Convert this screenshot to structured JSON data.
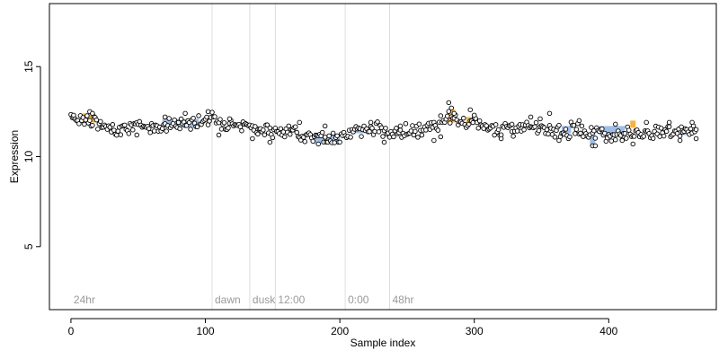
{
  "chart_data": {
    "type": "scatter",
    "xlabel": "Sample index",
    "ylabel": "Expression",
    "xlim": [
      -16,
      480
    ],
    "ylim": [
      1.5,
      18.5
    ],
    "x_ticks": [
      0,
      100,
      200,
      300,
      400
    ],
    "y_ticks": [
      5,
      10,
      15
    ],
    "grid": false,
    "colors": {
      "point_fill": "#ffffff",
      "point_edge": "#000000",
      "highlight_orange": "#f5a623",
      "highlight_blue": "#8fb2e3",
      "annotation_line": "#dcdcdc",
      "annotation_text": "#9a9a9a"
    },
    "annotations": [
      {
        "x": 0,
        "label": "24hr",
        "line": false
      },
      {
        "x": 105,
        "label": "dawn",
        "line": true
      },
      {
        "x": 133,
        "label": "dusk",
        "line": true
      },
      {
        "x": 152,
        "label": "12:00",
        "line": true
      },
      {
        "x": 204,
        "label": "0:00",
        "line": true
      },
      {
        "x": 237,
        "label": "48hr",
        "line": true
      }
    ],
    "highlight_bands": [
      {
        "x_start": 8,
        "x_end": 18,
        "color": "orange",
        "y_low": 11.9,
        "y_high": 12.4
      },
      {
        "x_start": 68,
        "x_end": 95,
        "color": "blue",
        "y_low": 11.6,
        "y_high": 12.1
      },
      {
        "x_start": 100,
        "x_end": 104,
        "color": "orange",
        "y_low": 11.9,
        "y_high": 12.3
      },
      {
        "x_start": 180,
        "x_end": 200,
        "color": "blue",
        "y_low": 10.7,
        "y_high": 11.2
      },
      {
        "x_start": 208,
        "x_end": 218,
        "color": "blue",
        "y_low": 11.3,
        "y_high": 11.6
      },
      {
        "x_start": 280,
        "x_end": 286,
        "color": "orange",
        "y_low": 11.9,
        "y_high": 12.6
      },
      {
        "x_start": 294,
        "x_end": 300,
        "color": "orange",
        "y_low": 11.8,
        "y_high": 12.2
      },
      {
        "x_start": 365,
        "x_end": 372,
        "color": "blue",
        "y_low": 11.3,
        "y_high": 11.7
      },
      {
        "x_start": 386,
        "x_end": 390,
        "color": "blue",
        "y_low": 10.6,
        "y_high": 11.3
      },
      {
        "x_start": 393,
        "x_end": 412,
        "color": "blue",
        "y_low": 11.2,
        "y_high": 11.7
      },
      {
        "x_start": 416,
        "x_end": 420,
        "color": "orange",
        "y_low": 11.6,
        "y_high": 12.0
      },
      {
        "x_start": 456,
        "x_end": 460,
        "color": "blue",
        "y_low": 11.2,
        "y_high": 11.6
      }
    ],
    "trend": [
      [
        0,
        12.2
      ],
      [
        10,
        12.1
      ],
      [
        20,
        11.8
      ],
      [
        30,
        11.5
      ],
      [
        45,
        11.7
      ],
      [
        60,
        11.6
      ],
      [
        75,
        11.8
      ],
      [
        90,
        11.9
      ],
      [
        100,
        12.1
      ],
      [
        115,
        11.9
      ],
      [
        125,
        11.8
      ],
      [
        135,
        11.6
      ],
      [
        145,
        11.4
      ],
      [
        155,
        11.3
      ],
      [
        165,
        11.4
      ],
      [
        175,
        11.3
      ],
      [
        185,
        11.0
      ],
      [
        195,
        11.0
      ],
      [
        205,
        11.3
      ],
      [
        215,
        11.5
      ],
      [
        230,
        11.5
      ],
      [
        240,
        11.3
      ],
      [
        250,
        11.4
      ],
      [
        265,
        11.5
      ],
      [
        275,
        11.8
      ],
      [
        283,
        12.1
      ],
      [
        290,
        11.9
      ],
      [
        300,
        11.9
      ],
      [
        310,
        11.6
      ],
      [
        325,
        11.6
      ],
      [
        340,
        11.6
      ],
      [
        355,
        11.5
      ],
      [
        365,
        11.4
      ],
      [
        375,
        11.5
      ],
      [
        385,
        11.3
      ],
      [
        395,
        11.3
      ],
      [
        405,
        11.2
      ],
      [
        415,
        11.4
      ],
      [
        425,
        11.3
      ],
      [
        440,
        11.4
      ],
      [
        450,
        11.4
      ],
      [
        460,
        11.4
      ]
    ],
    "outliers": [
      [
        2,
        12.3
      ],
      [
        14,
        12.5
      ],
      [
        16,
        12.4
      ],
      [
        49,
        11.2
      ],
      [
        70,
        12.2
      ],
      [
        85,
        12.4
      ],
      [
        102,
        12.5
      ],
      [
        110,
        11.2
      ],
      [
        118,
        12.1
      ],
      [
        135,
        11.0
      ],
      [
        148,
        10.8
      ],
      [
        170,
        11.9
      ],
      [
        184,
        10.7
      ],
      [
        189,
        11.7
      ],
      [
        223,
        11.9
      ],
      [
        233,
        10.8
      ],
      [
        245,
        11.7
      ],
      [
        270,
        10.9
      ],
      [
        275,
        11.1
      ],
      [
        281,
        13.0
      ],
      [
        283,
        12.7
      ],
      [
        285,
        12.4
      ],
      [
        297,
        12.6
      ],
      [
        300,
        12.3
      ],
      [
        320,
        11.0
      ],
      [
        328,
        11.8
      ],
      [
        342,
        12.2
      ],
      [
        349,
        12.1
      ],
      [
        356,
        12.4
      ],
      [
        363,
        10.9
      ],
      [
        378,
        12.0
      ],
      [
        388,
        10.6
      ],
      [
        390,
        10.6
      ],
      [
        405,
        11.8
      ],
      [
        410,
        10.9
      ],
      [
        418,
        10.7
      ],
      [
        428,
        11.9
      ],
      [
        445,
        11.9
      ],
      [
        453,
        10.9
      ],
      [
        462,
        11.9
      ],
      [
        465,
        11.0
      ]
    ]
  }
}
